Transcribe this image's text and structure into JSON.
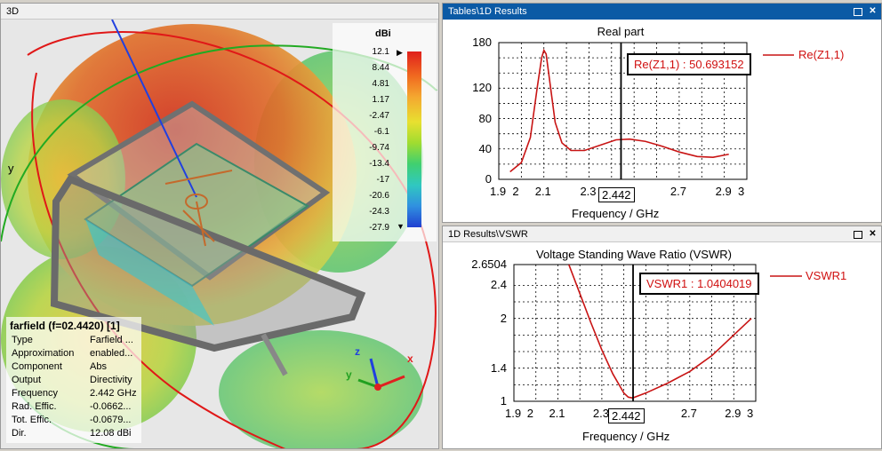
{
  "left_panel": {
    "title": "3D",
    "colorbar": {
      "unit": "dBi",
      "ticks": [
        "12.1",
        "8.44",
        "4.81",
        "1.17",
        "-2.47",
        "-6.1",
        "-9.74",
        "-13.4",
        "-17",
        "-20.6",
        "-24.3",
        "-27.9"
      ]
    },
    "axes": {
      "x": "x",
      "y": "y",
      "z": "z"
    },
    "farfield": {
      "title": "farfield (f=02.4420) [1]",
      "rows": [
        {
          "key": "Type",
          "value": "Farfield ..."
        },
        {
          "key": "Approximation",
          "value": "enabled..."
        },
        {
          "key": "Component",
          "value": "Abs"
        },
        {
          "key": "Output",
          "value": "Directivity"
        },
        {
          "key": "Frequency",
          "value": "2.442 GHz"
        },
        {
          "key": "Rad. Effic.",
          "value": "-0.0662..."
        },
        {
          "key": "Tot. Effic.",
          "value": "-0.0679..."
        },
        {
          "key": "Dir.",
          "value": "12.08 dBi"
        }
      ]
    }
  },
  "top_right": {
    "title": "Tables\\1D Results",
    "chart_title": "Real part",
    "ytick_labels": [
      "180",
      "120",
      "80",
      "40",
      "0"
    ],
    "xtick_labels": [
      "1.9",
      "2",
      "2.1",
      "2.3",
      "2.7",
      "2.9",
      "3"
    ],
    "xlabel": "Frequency / GHz",
    "marker_x": "2.442",
    "marker_box": "Re(Z1,1) : 50.693152",
    "legend": "Re(Z1,1)"
  },
  "bottom_right": {
    "title": "1D Results\\VSWR",
    "chart_title": "Voltage Standing Wave Ratio (VSWR)",
    "ytick_labels": [
      "2.6504",
      "2.4",
      "2",
      "1.4",
      "1"
    ],
    "xtick_labels": [
      "1.9",
      "2",
      "2.1",
      "2.3",
      "2.7",
      "2.9",
      "3"
    ],
    "xlabel": "Frequency / GHz",
    "marker_x": "2.442",
    "marker_box": "VSWR1 : 1.0404019",
    "legend": "VSWR1"
  },
  "chart_data": [
    {
      "type": "line",
      "title": "Real part",
      "xlabel": "Frequency / GHz",
      "ylabel": "",
      "xlim": [
        1.9,
        3.0
      ],
      "ylim": [
        0,
        180
      ],
      "series": [
        {
          "name": "Re(Z1,1)",
          "color": "#c81414",
          "x": [
            1.95,
            2.0,
            2.04,
            2.07,
            2.09,
            2.1,
            2.11,
            2.13,
            2.15,
            2.18,
            2.22,
            2.28,
            2.35,
            2.42,
            2.48,
            2.55,
            2.62,
            2.7,
            2.78,
            2.85,
            2.92
          ],
          "y": [
            10,
            22,
            55,
            120,
            160,
            170,
            165,
            120,
            75,
            48,
            38,
            38,
            45,
            52,
            53,
            50,
            44,
            36,
            30,
            29,
            33
          ]
        }
      ],
      "marker": {
        "x": 2.442,
        "value": 50.693152
      }
    },
    {
      "type": "line",
      "title": "Voltage Standing Wave Ratio (VSWR)",
      "xlabel": "Frequency / GHz",
      "ylabel": "",
      "xlim": [
        1.9,
        3.0
      ],
      "ylim": [
        1,
        2.6504
      ],
      "series": [
        {
          "name": "VSWR1",
          "color": "#c81414",
          "x": [
            2.15,
            2.2,
            2.25,
            2.3,
            2.35,
            2.4,
            2.42,
            2.44,
            2.5,
            2.6,
            2.7,
            2.8,
            2.9,
            2.98
          ],
          "y": [
            2.65,
            2.3,
            1.95,
            1.62,
            1.33,
            1.1,
            1.05,
            1.04,
            1.1,
            1.22,
            1.36,
            1.55,
            1.8,
            2.0
          ]
        }
      ],
      "marker": {
        "x": 2.442,
        "value": 1.0404019
      }
    }
  ]
}
